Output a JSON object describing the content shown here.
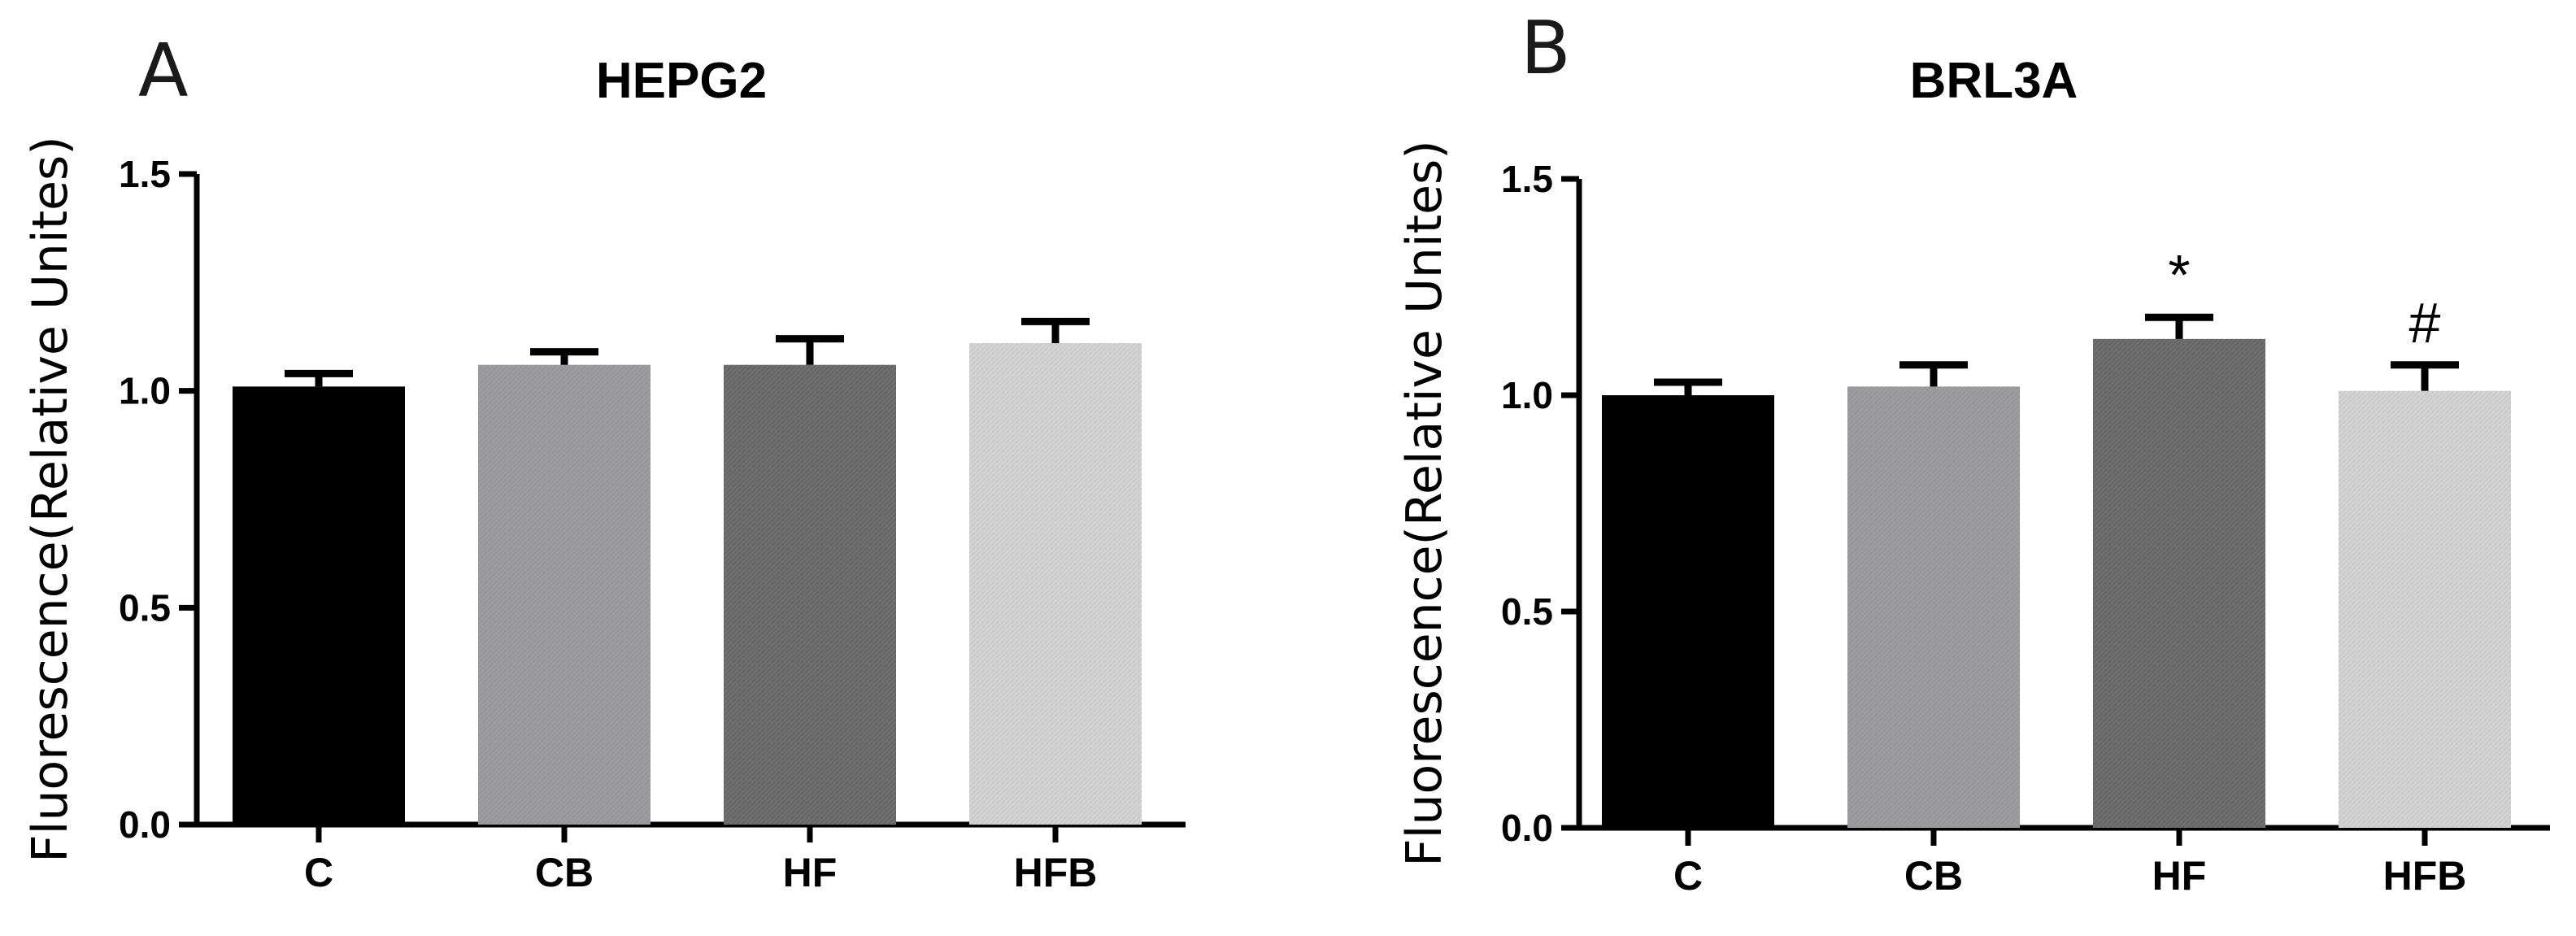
{
  "chart_data": [
    {
      "type": "bar",
      "panel": "A",
      "title": "HEPG2",
      "ylabel": "Fluorescence(Relative Unites)",
      "categories": [
        "C",
        "CB",
        "HF",
        "HFB"
      ],
      "values": [
        1.01,
        1.06,
        1.06,
        1.11
      ],
      "errors": [
        0.03,
        0.03,
        0.06,
        0.05
      ],
      "colors": [
        "#000000",
        "#9c9c9e",
        "#6f6f6f",
        "#d4d4d4"
      ],
      "annotations": [
        "",
        "",
        "",
        ""
      ],
      "ylim": [
        0,
        1.5
      ],
      "yticks": [
        "0.0",
        "0.5",
        "1.0",
        "1.5"
      ],
      "grid": false
    },
    {
      "type": "bar",
      "panel": "B",
      "title": "BRL3A",
      "ylabel": "Fluorescence(Relative Unites)",
      "categories": [
        "C",
        "CB",
        "HF",
        "HFB"
      ],
      "values": [
        1.0,
        1.02,
        1.13,
        1.01
      ],
      "errors": [
        0.03,
        0.05,
        0.05,
        0.06
      ],
      "colors": [
        "#000000",
        "#9c9c9e",
        "#6f6f6f",
        "#d4d4d4"
      ],
      "annotations": [
        "",
        "",
        "*",
        "#"
      ],
      "ylim": [
        0,
        1.5
      ],
      "yticks": [
        "0.0",
        "0.5",
        "1.0",
        "1.5"
      ],
      "grid": false
    }
  ]
}
